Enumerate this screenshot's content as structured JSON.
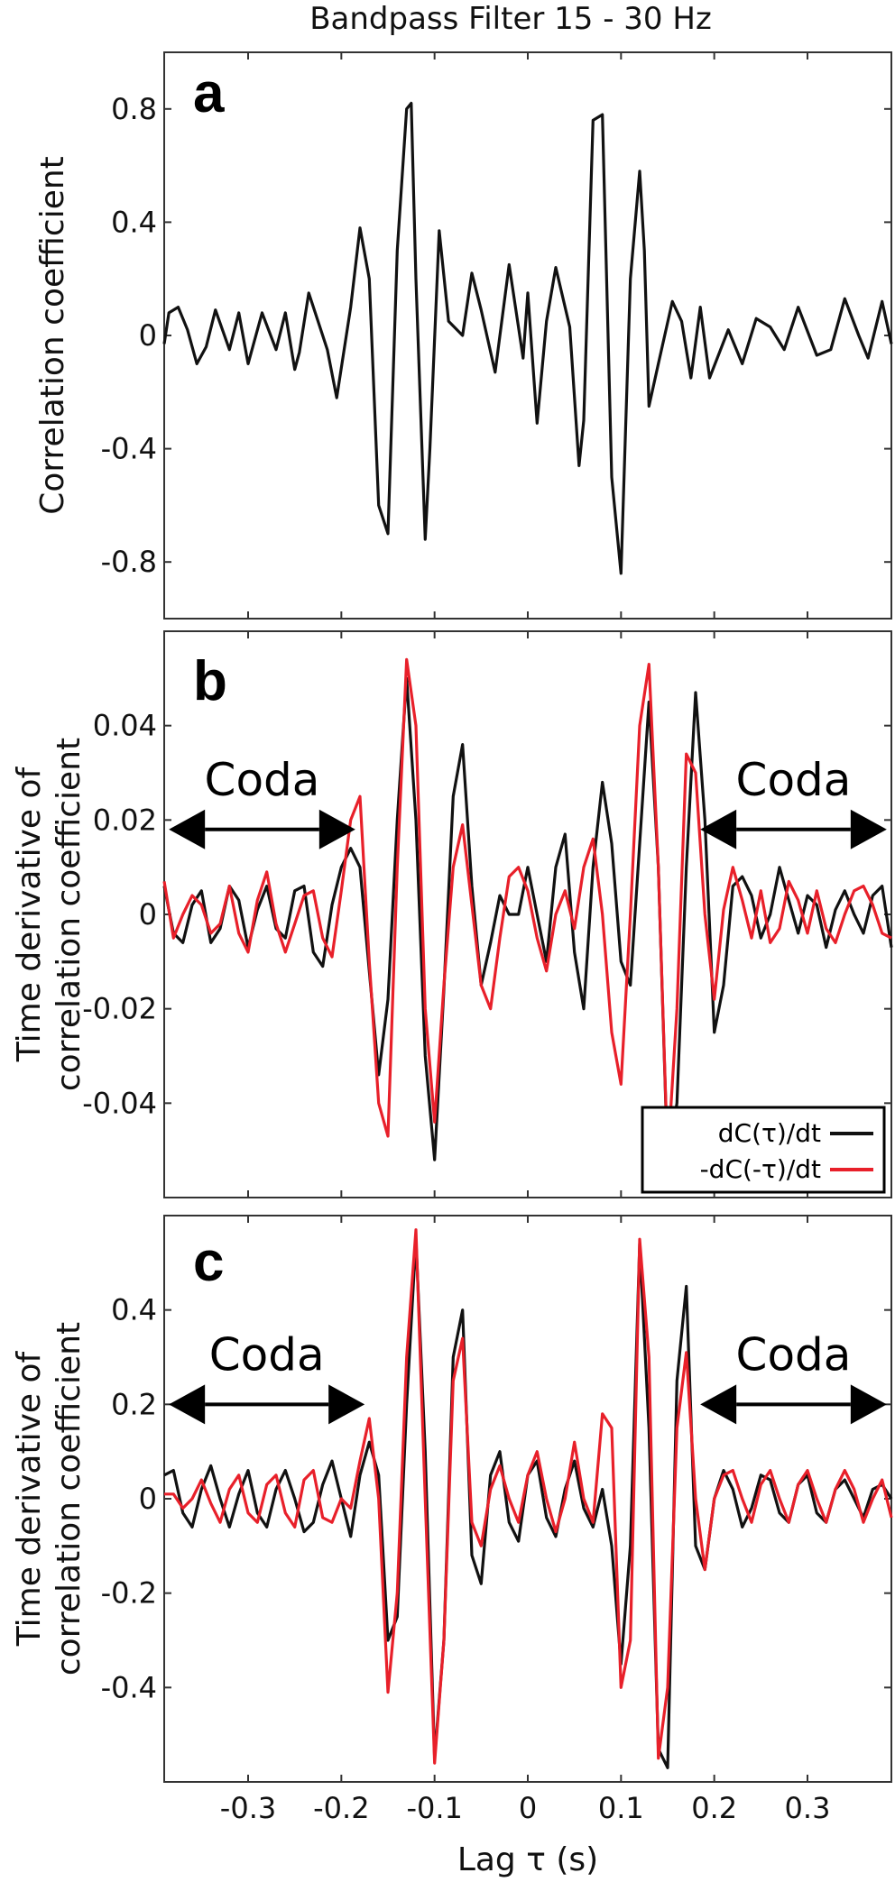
{
  "figure_title": "Bandpass Filter 15 - 30 Hz",
  "colors": {
    "black": "#111111",
    "red": "#e8202a"
  },
  "chart_data": [
    {
      "type": "line",
      "panel_label": "a",
      "title": "Bandpass Filter 15 - 30 Hz",
      "ylabel_lines": [
        "Correlation coefficient"
      ],
      "xlabel": "Lag τ (s)",
      "xlim": [
        -0.39,
        0.39
      ],
      "ylim": [
        -1.0,
        1.0
      ],
      "yticks": [
        0.8,
        0.4,
        0,
        -0.4,
        -0.8
      ],
      "ytick_labels": [
        "0.8",
        "0.4",
        "0",
        "-0.4",
        "-0.8"
      ],
      "xticks": [
        -0.3,
        -0.2,
        -0.1,
        0,
        0.1,
        0.2,
        0.3
      ],
      "xtick_labels": [
        "-0.3",
        "-0.2",
        "-0.1",
        "0",
        "0.1",
        "0.2",
        "0.3"
      ],
      "show_xtick_labels": false,
      "grid": false,
      "series": [
        {
          "color": "#111111",
          "x": [
            -0.39,
            -0.385,
            -0.375,
            -0.365,
            -0.355,
            -0.345,
            -0.335,
            -0.32,
            -0.31,
            -0.3,
            -0.285,
            -0.27,
            -0.26,
            -0.25,
            -0.245,
            -0.235,
            -0.225,
            -0.215,
            -0.205,
            -0.19,
            -0.18,
            -0.17,
            -0.16,
            -0.15,
            -0.14,
            -0.13,
            -0.125,
            -0.12,
            -0.11,
            -0.105,
            -0.095,
            -0.085,
            -0.07,
            -0.06,
            -0.05,
            -0.035,
            -0.02,
            -0.005,
            0.0,
            0.01,
            0.02,
            0.03,
            0.045,
            0.055,
            0.06,
            0.07,
            0.08,
            0.09,
            0.1,
            0.11,
            0.12,
            0.125,
            0.13,
            0.14,
            0.155,
            0.165,
            0.175,
            0.185,
            0.195,
            0.215,
            0.23,
            0.245,
            0.26,
            0.275,
            0.29,
            0.31,
            0.325,
            0.34,
            0.355,
            0.365,
            0.38,
            0.39
          ],
          "y": [
            -0.03,
            0.08,
            0.1,
            0.02,
            -0.1,
            -0.04,
            0.09,
            -0.05,
            0.08,
            -0.1,
            0.08,
            -0.05,
            0.08,
            -0.12,
            -0.06,
            0.15,
            0.05,
            -0.05,
            -0.22,
            0.1,
            0.38,
            0.2,
            -0.6,
            -0.7,
            0.3,
            0.8,
            0.82,
            0.2,
            -0.72,
            -0.4,
            0.37,
            0.05,
            0.0,
            0.22,
            0.09,
            -0.13,
            0.25,
            -0.08,
            0.15,
            -0.31,
            0.05,
            0.24,
            0.03,
            -0.46,
            -0.3,
            0.76,
            0.78,
            -0.5,
            -0.84,
            0.2,
            0.58,
            0.3,
            -0.25,
            -0.1,
            0.12,
            0.05,
            -0.15,
            0.1,
            -0.15,
            0.02,
            -0.1,
            0.06,
            0.03,
            -0.05,
            0.1,
            -0.07,
            -0.05,
            0.13,
            0.0,
            -0.08,
            0.12,
            -0.03
          ]
        }
      ]
    },
    {
      "type": "line",
      "panel_label": "b",
      "ylabel_lines": [
        "Time derivative of",
        "correlation coefficient"
      ],
      "xlabel": "Lag τ (s)",
      "xlim": [
        -0.39,
        0.39
      ],
      "ylim": [
        -0.06,
        0.06
      ],
      "yticks": [
        0.04,
        0.02,
        0,
        -0.02,
        -0.04
      ],
      "ytick_labels": [
        "0.04",
        "0.02",
        "0",
        "-0.02",
        "-0.04"
      ],
      "xticks": [
        -0.3,
        -0.2,
        -0.1,
        0,
        0.1,
        0.2,
        0.3
      ],
      "xtick_labels": [
        "-0.3",
        "-0.2",
        "-0.1",
        "0",
        "0.1",
        "0.2",
        "0.3"
      ],
      "show_xtick_labels": false,
      "grid": false,
      "annotations": [
        {
          "text": "Coda",
          "arrow_from": -0.385,
          "arrow_to": -0.185
        },
        {
          "text": "Coda",
          "arrow_from": 0.185,
          "arrow_to": 0.385
        }
      ],
      "legend": {
        "position": "lower-right",
        "entries": [
          "dC(τ)/dt",
          "-dC(-τ)/dt"
        ]
      },
      "series": [
        {
          "name": "dC(τ)/dt",
          "color": "#111111",
          "x": [
            -0.39,
            -0.38,
            -0.37,
            -0.36,
            -0.35,
            -0.34,
            -0.33,
            -0.32,
            -0.31,
            -0.3,
            -0.29,
            -0.28,
            -0.27,
            -0.26,
            -0.25,
            -0.24,
            -0.23,
            -0.22,
            -0.21,
            -0.2,
            -0.19,
            -0.18,
            -0.17,
            -0.16,
            -0.15,
            -0.14,
            -0.13,
            -0.12,
            -0.11,
            -0.1,
            -0.09,
            -0.08,
            -0.07,
            -0.06,
            -0.05,
            -0.04,
            -0.03,
            -0.02,
            -0.01,
            0.0,
            0.01,
            0.02,
            0.03,
            0.04,
            0.05,
            0.06,
            0.07,
            0.08,
            0.09,
            0.1,
            0.11,
            0.12,
            0.13,
            0.14,
            0.15,
            0.16,
            0.17,
            0.18,
            0.19,
            0.2,
            0.21,
            0.22,
            0.23,
            0.24,
            0.25,
            0.26,
            0.27,
            0.28,
            0.29,
            0.3,
            0.31,
            0.32,
            0.33,
            0.34,
            0.35,
            0.36,
            0.37,
            0.38,
            0.39
          ],
          "y": [
            0.006,
            -0.004,
            -0.006,
            0.002,
            0.005,
            -0.006,
            -0.003,
            0.006,
            0.003,
            -0.007,
            0.001,
            0.006,
            -0.003,
            -0.005,
            0.005,
            0.006,
            -0.008,
            -0.011,
            0.002,
            0.01,
            0.014,
            0.01,
            -0.012,
            -0.034,
            -0.018,
            0.02,
            0.05,
            0.02,
            -0.03,
            -0.052,
            -0.016,
            0.025,
            0.036,
            0.006,
            -0.015,
            -0.006,
            0.004,
            0.0,
            0.0,
            0.01,
            0.0,
            -0.01,
            0.01,
            0.017,
            -0.008,
            -0.02,
            0.01,
            0.028,
            0.015,
            -0.01,
            -0.015,
            0.015,
            0.045,
            0.01,
            -0.053,
            -0.04,
            0.01,
            0.047,
            0.02,
            -0.025,
            -0.015,
            0.006,
            0.008,
            0.004,
            -0.005,
            0.0,
            0.01,
            0.003,
            -0.004,
            0.004,
            0.002,
            -0.007,
            0.001,
            0.005,
            0.0,
            -0.004,
            0.004,
            0.006,
            -0.007
          ]
        },
        {
          "name": "-dC(-τ)/dt",
          "color": "#e8202a",
          "x": [
            -0.39,
            -0.38,
            -0.37,
            -0.36,
            -0.35,
            -0.34,
            -0.33,
            -0.32,
            -0.31,
            -0.3,
            -0.29,
            -0.28,
            -0.27,
            -0.26,
            -0.25,
            -0.24,
            -0.23,
            -0.22,
            -0.21,
            -0.2,
            -0.19,
            -0.18,
            -0.17,
            -0.16,
            -0.15,
            -0.14,
            -0.13,
            -0.12,
            -0.11,
            -0.1,
            -0.09,
            -0.08,
            -0.07,
            -0.06,
            -0.05,
            -0.04,
            -0.03,
            -0.02,
            -0.01,
            0.0,
            0.01,
            0.02,
            0.03,
            0.04,
            0.05,
            0.06,
            0.07,
            0.08,
            0.09,
            0.1,
            0.11,
            0.12,
            0.13,
            0.14,
            0.15,
            0.16,
            0.17,
            0.18,
            0.19,
            0.2,
            0.21,
            0.22,
            0.23,
            0.24,
            0.25,
            0.26,
            0.27,
            0.28,
            0.29,
            0.3,
            0.31,
            0.32,
            0.33,
            0.34,
            0.35,
            0.36,
            0.37,
            0.38,
            0.39
          ],
          "y": [
            0.007,
            -0.005,
            0.0,
            0.004,
            0.002,
            -0.004,
            -0.002,
            0.006,
            -0.004,
            -0.008,
            0.003,
            0.009,
            -0.002,
            -0.008,
            -0.002,
            0.004,
            0.005,
            -0.005,
            -0.009,
            0.005,
            0.02,
            0.025,
            -0.01,
            -0.04,
            -0.047,
            0.01,
            0.054,
            0.04,
            -0.02,
            -0.044,
            -0.015,
            0.01,
            0.019,
            0.002,
            -0.015,
            -0.02,
            -0.005,
            0.008,
            0.01,
            0.005,
            -0.005,
            -0.012,
            0.0,
            0.005,
            -0.003,
            0.01,
            0.016,
            0.0,
            -0.025,
            -0.036,
            0.0,
            0.04,
            0.053,
            0.01,
            -0.052,
            -0.02,
            0.034,
            0.03,
            0.0,
            -0.018,
            0.001,
            0.01,
            0.003,
            -0.005,
            0.005,
            -0.006,
            -0.003,
            0.007,
            0.003,
            -0.004,
            0.005,
            -0.003,
            -0.006,
            0.0,
            0.005,
            0.006,
            0.002,
            -0.004,
            -0.005
          ]
        }
      ]
    },
    {
      "type": "line",
      "panel_label": "c",
      "ylabel_lines": [
        "Time derivative of",
        "correlation coefficient"
      ],
      "xlabel": "Lag τ (s)",
      "xlim": [
        -0.39,
        0.39
      ],
      "ylim": [
        -0.6,
        0.6
      ],
      "yticks": [
        0.4,
        0.2,
        0,
        -0.2,
        -0.4
      ],
      "ytick_labels": [
        "0.4",
        "0.2",
        "0",
        "-0.2",
        "-0.4"
      ],
      "xticks": [
        -0.3,
        -0.2,
        -0.1,
        0,
        0.1,
        0.2,
        0.3
      ],
      "xtick_labels": [
        "-0.3",
        "-0.2",
        "-0.1",
        "0",
        "0.1",
        "0.2",
        "0.3"
      ],
      "show_xtick_labels": true,
      "grid": false,
      "annotations": [
        {
          "text": "Coda",
          "arrow_from": -0.385,
          "arrow_to": -0.175
        },
        {
          "text": "Coda",
          "arrow_from": 0.185,
          "arrow_to": 0.385
        }
      ],
      "series": [
        {
          "color": "#111111",
          "x": [
            -0.39,
            -0.38,
            -0.37,
            -0.36,
            -0.35,
            -0.34,
            -0.33,
            -0.32,
            -0.31,
            -0.3,
            -0.29,
            -0.28,
            -0.27,
            -0.26,
            -0.25,
            -0.24,
            -0.23,
            -0.22,
            -0.21,
            -0.2,
            -0.19,
            -0.18,
            -0.17,
            -0.16,
            -0.15,
            -0.14,
            -0.13,
            -0.12,
            -0.11,
            -0.1,
            -0.09,
            -0.08,
            -0.07,
            -0.06,
            -0.05,
            -0.04,
            -0.03,
            -0.02,
            -0.01,
            0.0,
            0.01,
            0.02,
            0.03,
            0.04,
            0.05,
            0.06,
            0.07,
            0.08,
            0.09,
            0.1,
            0.11,
            0.12,
            0.13,
            0.14,
            0.15,
            0.16,
            0.17,
            0.18,
            0.19,
            0.2,
            0.21,
            0.22,
            0.23,
            0.24,
            0.25,
            0.26,
            0.27,
            0.28,
            0.29,
            0.3,
            0.31,
            0.32,
            0.33,
            0.34,
            0.35,
            0.36,
            0.37,
            0.38,
            0.39
          ],
          "y": [
            0.05,
            0.06,
            -0.03,
            -0.06,
            0.02,
            0.07,
            0.0,
            -0.06,
            0.01,
            0.06,
            -0.03,
            -0.06,
            0.02,
            0.06,
            0.0,
            -0.07,
            -0.05,
            0.03,
            0.08,
            0.0,
            -0.08,
            0.05,
            0.12,
            0.05,
            -0.3,
            -0.25,
            0.2,
            0.55,
            0.1,
            -0.55,
            -0.3,
            0.3,
            0.4,
            -0.12,
            -0.18,
            0.05,
            0.1,
            -0.05,
            -0.09,
            0.05,
            0.08,
            -0.04,
            -0.08,
            0.02,
            0.08,
            -0.02,
            -0.06,
            0.02,
            -0.1,
            -0.35,
            -0.1,
            0.54,
            0.15,
            -0.53,
            -0.57,
            0.25,
            0.45,
            -0.1,
            -0.15,
            0.0,
            0.06,
            0.02,
            -0.06,
            -0.02,
            0.05,
            0.04,
            -0.03,
            -0.05,
            0.03,
            0.05,
            -0.03,
            -0.05,
            0.02,
            0.04,
            0.0,
            -0.04,
            0.02,
            0.03,
            0.0
          ]
        },
        {
          "color": "#e8202a",
          "x": [
            -0.39,
            -0.38,
            -0.37,
            -0.36,
            -0.35,
            -0.34,
            -0.33,
            -0.32,
            -0.31,
            -0.3,
            -0.29,
            -0.28,
            -0.27,
            -0.26,
            -0.25,
            -0.24,
            -0.23,
            -0.22,
            -0.21,
            -0.2,
            -0.19,
            -0.18,
            -0.17,
            -0.16,
            -0.15,
            -0.14,
            -0.13,
            -0.12,
            -0.11,
            -0.1,
            -0.09,
            -0.08,
            -0.07,
            -0.06,
            -0.05,
            -0.04,
            -0.03,
            -0.02,
            -0.01,
            0.0,
            0.01,
            0.02,
            0.03,
            0.04,
            0.05,
            0.06,
            0.07,
            0.08,
            0.09,
            0.1,
            0.11,
            0.12,
            0.13,
            0.14,
            0.15,
            0.16,
            0.17,
            0.18,
            0.19,
            0.2,
            0.21,
            0.22,
            0.23,
            0.24,
            0.25,
            0.26,
            0.27,
            0.28,
            0.29,
            0.3,
            0.31,
            0.32,
            0.33,
            0.34,
            0.35,
            0.36,
            0.37,
            0.38,
            0.39
          ],
          "y": [
            0.01,
            0.01,
            -0.02,
            0.0,
            0.04,
            -0.01,
            -0.05,
            0.02,
            0.05,
            -0.03,
            -0.05,
            0.03,
            0.05,
            -0.03,
            -0.06,
            0.04,
            0.06,
            -0.04,
            -0.05,
            0.0,
            -0.02,
            0.08,
            0.17,
            0.0,
            -0.41,
            -0.2,
            0.3,
            0.57,
            0.0,
            -0.56,
            -0.3,
            0.25,
            0.34,
            -0.05,
            -0.1,
            0.02,
            0.07,
            0.0,
            -0.05,
            0.05,
            0.1,
            0.0,
            -0.07,
            0.0,
            0.12,
            0.0,
            -0.05,
            0.18,
            0.15,
            -0.4,
            -0.3,
            0.55,
            0.3,
            -0.55,
            -0.4,
            0.15,
            0.31,
            0.0,
            -0.15,
            0.0,
            0.05,
            0.06,
            0.0,
            -0.05,
            0.03,
            0.06,
            0.0,
            -0.05,
            0.03,
            0.06,
            0.0,
            -0.05,
            0.02,
            0.06,
            0.02,
            -0.05,
            0.0,
            0.04,
            -0.04
          ]
        }
      ]
    }
  ]
}
